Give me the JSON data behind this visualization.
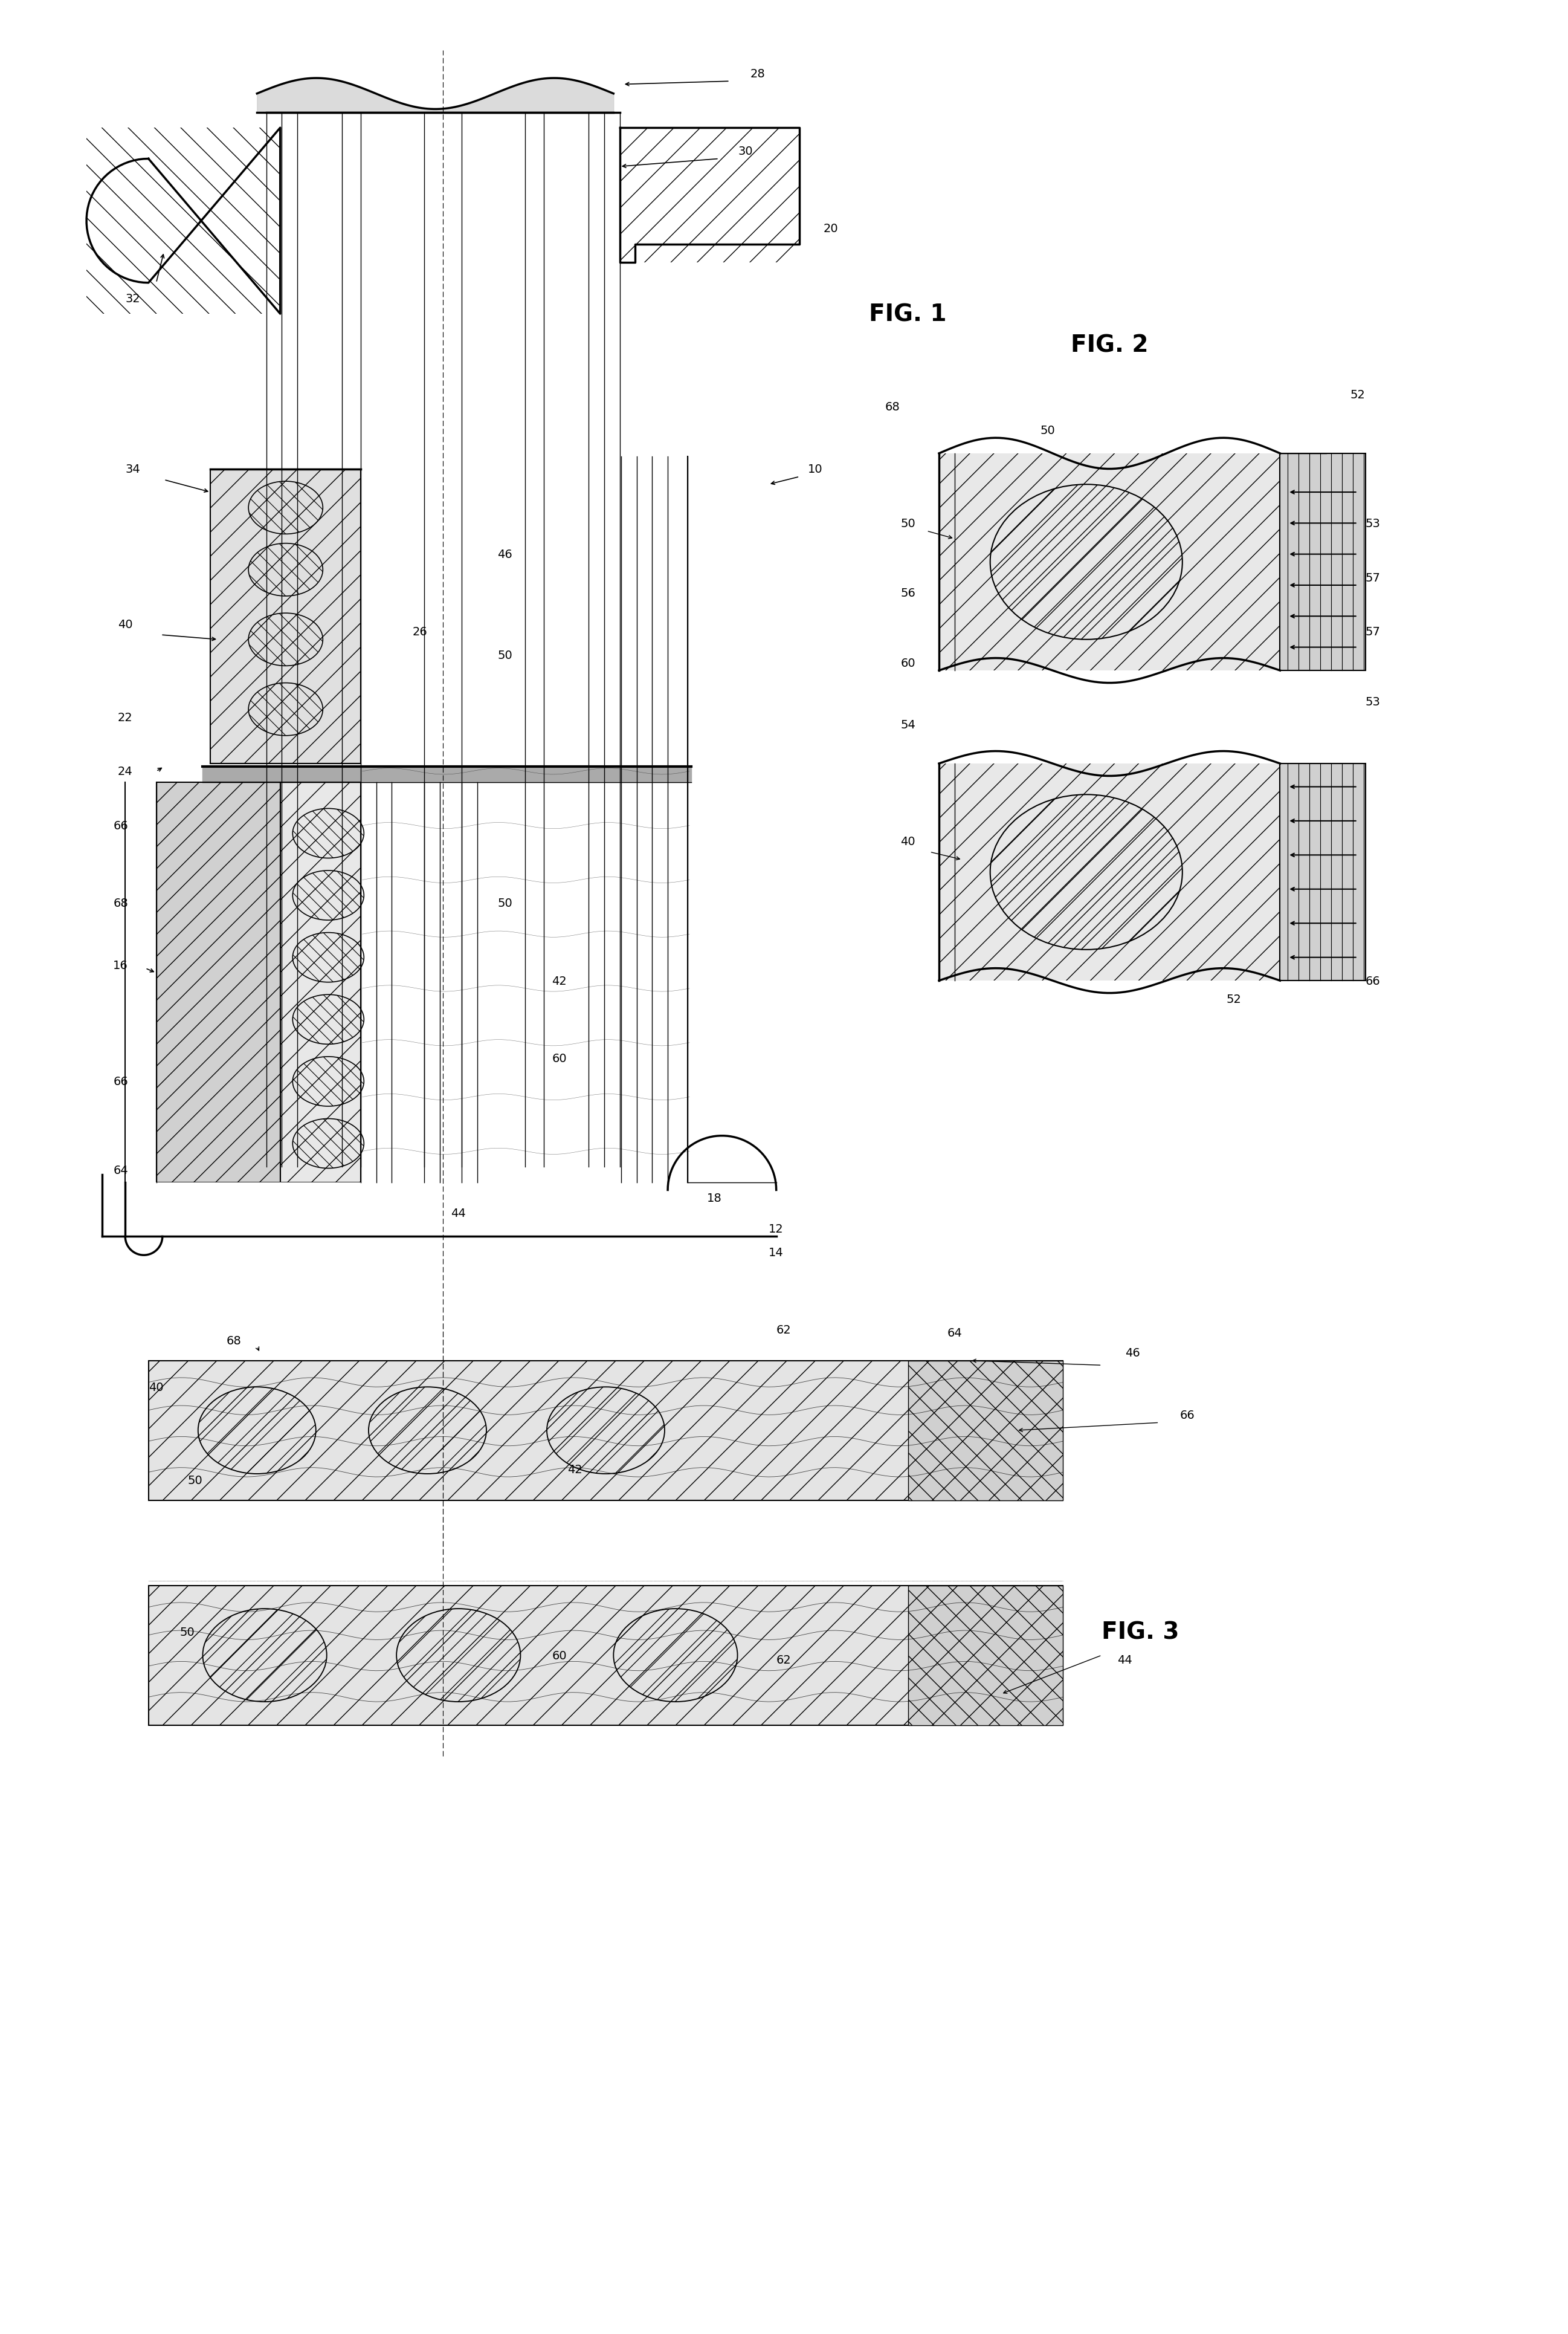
{
  "background_color": "#ffffff",
  "line_color": "#000000",
  "fig_width": 25.95,
  "fig_height": 38.62,
  "labels": {
    "fig1": "FIG. 1",
    "fig2": "FIG. 2",
    "fig3": "FIG. 3",
    "n10": "10",
    "n12": "12",
    "n14": "14",
    "n16": "16",
    "n18": "18",
    "n20": "20",
    "n22": "22",
    "n24": "24",
    "n26": "26",
    "n28": "28",
    "n30": "30",
    "n32": "32",
    "n34": "34",
    "n40": "40",
    "n42": "42",
    "n44": "44",
    "n46": "46",
    "n50": "50",
    "n52": "52",
    "n53": "53",
    "n54": "54",
    "n56": "56",
    "n57": "57",
    "n60": "60",
    "n62": "62",
    "n64": "64",
    "n66": "66",
    "n68": "68"
  }
}
